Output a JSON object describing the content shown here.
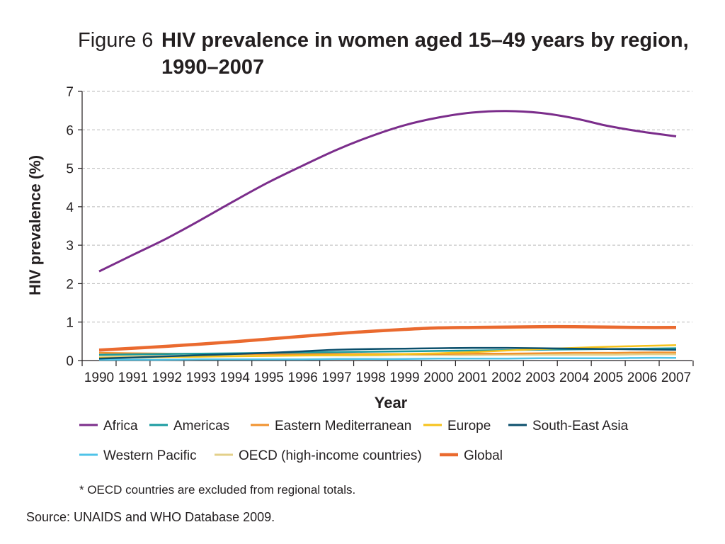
{
  "figure": {
    "prefix": "Figure 6",
    "title_line1": "HIV prevalence in women aged 15–49 years by region,",
    "title_line2": "1990–2007",
    "note": "* OECD countries are excluded from regional totals.",
    "source": "Source: UNAIDS and WHO Database 2009."
  },
  "chart_data": {
    "type": "line",
    "xlabel": "Year",
    "ylabel": "HIV prevalence (%)",
    "x": [
      1990,
      1991,
      1992,
      1993,
      1994,
      1995,
      1996,
      1997,
      1998,
      1999,
      2000,
      2001,
      2002,
      2003,
      2004,
      2005,
      2006,
      2007
    ],
    "xtick_labels": [
      "1990",
      "1991",
      "1992",
      "1993",
      "1994",
      "1995",
      "1996",
      "1997",
      "1998",
      "1999",
      "2000",
      "2001",
      "2002",
      "2003",
      "2004",
      "2005",
      "2006",
      "2007"
    ],
    "ylim": [
      0,
      7
    ],
    "yticks": [
      0,
      1,
      2,
      3,
      4,
      5,
      6,
      7
    ],
    "ytick_labels": [
      "0",
      "1",
      "2",
      "3",
      "4",
      "5",
      "6",
      "7"
    ],
    "grid": true,
    "legend_position": "bottom",
    "series": [
      {
        "name": "Africa",
        "color": "#7b2d8b",
        "width": 3,
        "values": [
          2.32,
          2.75,
          3.18,
          3.66,
          4.16,
          4.64,
          5.07,
          5.48,
          5.83,
          6.12,
          6.32,
          6.45,
          6.49,
          6.44,
          6.3,
          6.1,
          5.95,
          5.83
        ]
      },
      {
        "name": "Americas",
        "color": "#1a9ba0",
        "width": 2.5,
        "values": [
          0.15,
          0.16,
          0.17,
          0.18,
          0.19,
          0.2,
          0.21,
          0.22,
          0.23,
          0.24,
          0.25,
          0.26,
          0.27,
          0.28,
          0.29,
          0.3,
          0.31,
          0.32
        ]
      },
      {
        "name": "Eastern Mediterranean",
        "color": "#f0922e",
        "width": 2.5,
        "values": [
          0.2,
          0.19,
          0.18,
          0.17,
          0.17,
          0.17,
          0.17,
          0.17,
          0.17,
          0.17,
          0.17,
          0.18,
          0.18,
          0.19,
          0.2,
          0.2,
          0.21,
          0.21
        ]
      },
      {
        "name": "Europe",
        "color": "#f6c21a",
        "width": 2.5,
        "values": [
          0.07,
          0.08,
          0.09,
          0.1,
          0.11,
          0.12,
          0.13,
          0.14,
          0.15,
          0.17,
          0.19,
          0.22,
          0.26,
          0.3,
          0.33,
          0.36,
          0.38,
          0.4
        ]
      },
      {
        "name": "South-East Asia",
        "color": "#0b4f6c",
        "width": 2.5,
        "values": [
          0.05,
          0.08,
          0.11,
          0.14,
          0.17,
          0.2,
          0.24,
          0.28,
          0.3,
          0.31,
          0.32,
          0.33,
          0.33,
          0.32,
          0.31,
          0.3,
          0.29,
          0.28
        ]
      },
      {
        "name": "Western Pacific",
        "color": "#4fc3e8",
        "width": 2.5,
        "values": [
          0.02,
          0.02,
          0.02,
          0.03,
          0.03,
          0.03,
          0.03,
          0.04,
          0.04,
          0.04,
          0.05,
          0.05,
          0.05,
          0.06,
          0.06,
          0.06,
          0.07,
          0.07
        ]
      },
      {
        "name": "OECD (high-income countries)",
        "color": "#e3d08a",
        "width": 2.5,
        "values": [
          0.12,
          0.12,
          0.12,
          0.12,
          0.13,
          0.13,
          0.13,
          0.13,
          0.13,
          0.14,
          0.14,
          0.14,
          0.15,
          0.15,
          0.15,
          0.15,
          0.16,
          0.16
        ]
      },
      {
        "name": "Global",
        "color": "#ea6a2f",
        "width": 4.5,
        "values": [
          0.27,
          0.32,
          0.37,
          0.43,
          0.49,
          0.56,
          0.63,
          0.7,
          0.76,
          0.81,
          0.85,
          0.86,
          0.87,
          0.88,
          0.88,
          0.87,
          0.86,
          0.86
        ]
      }
    ]
  }
}
